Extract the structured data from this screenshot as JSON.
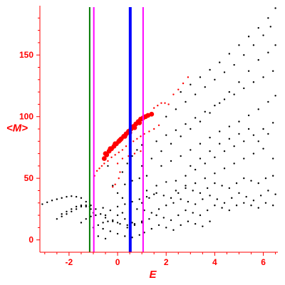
{
  "chart_data": {
    "type": "scatter",
    "xlabel": "E",
    "ylabel": "<M>",
    "xlim": [
      -3.2,
      6.6
    ],
    "ylim": [
      -10,
      190
    ],
    "x_ticks": [
      -2,
      0,
      2,
      4,
      6
    ],
    "x_tick_labels": [
      "-2",
      "0",
      "2",
      "4",
      "6"
    ],
    "y_ticks": [
      0,
      50,
      100,
      150
    ],
    "y_tick_labels": [
      "0",
      "50",
      "100",
      "150"
    ],
    "axis_color": "#ff0000",
    "tick_label_color": "#ff0000",
    "grid": false,
    "vertical_lines": [
      {
        "x": -1.15,
        "color": "#007700"
      },
      {
        "x": -0.98,
        "color": "#ff00ff"
      },
      {
        "x": 0.52,
        "color": "#0000ff",
        "emphasis": "thick"
      },
      {
        "x": 1.05,
        "color": "#ff00ff"
      }
    ],
    "series": [
      {
        "color": "#000000",
        "marker": "small-dot",
        "points": [
          [
            -3.1,
            29
          ],
          [
            -2.9,
            30.5
          ],
          [
            -2.7,
            32
          ],
          [
            -2.5,
            33
          ],
          [
            -2.3,
            34
          ],
          [
            -2.1,
            35
          ],
          [
            -1.9,
            35.5
          ],
          [
            -1.7,
            35
          ],
          [
            -1.5,
            34
          ],
          [
            -1.3,
            31
          ],
          [
            -1.15,
            27
          ],
          [
            -1.0,
            22
          ],
          [
            -2.5,
            17
          ],
          [
            -2.3,
            19
          ],
          [
            -2.1,
            21
          ],
          [
            -1.9,
            23
          ],
          [
            -1.7,
            25
          ],
          [
            -1.5,
            27
          ],
          [
            -1.3,
            28
          ],
          [
            -1.1,
            28
          ],
          [
            -2.3,
            21
          ],
          [
            -2.1,
            23
          ],
          [
            -1.9,
            25
          ],
          [
            -1.7,
            27
          ],
          [
            -1.5,
            28
          ],
          [
            -1.3,
            27
          ],
          [
            -1.1,
            25
          ],
          [
            -1.5,
            14
          ],
          [
            -1.3,
            17
          ],
          [
            -1.1,
            19
          ],
          [
            -0.9,
            20
          ],
          [
            -0.7,
            21
          ],
          [
            -0.5,
            20
          ],
          [
            -1.0,
            10
          ],
          [
            -0.8,
            12
          ],
          [
            -0.6,
            14
          ],
          [
            -0.4,
            15
          ],
          [
            -0.2,
            15
          ],
          [
            0.0,
            14
          ],
          [
            -0.9,
            25
          ],
          [
            -0.6,
            26
          ],
          [
            -0.3,
            24
          ],
          [
            0.0,
            20
          ],
          [
            0.3,
            17
          ],
          [
            0.6,
            14
          ],
          [
            -0.5,
            18
          ],
          [
            -0.2,
            16
          ],
          [
            0.1,
            13
          ],
          [
            0.4,
            12
          ],
          [
            0.7,
            13
          ],
          [
            1.0,
            15
          ],
          [
            0.0,
            27
          ],
          [
            0.3,
            29
          ],
          [
            0.6,
            31
          ],
          [
            0.9,
            33
          ],
          [
            1.2,
            35
          ],
          [
            1.5,
            37
          ],
          [
            1.0,
            60
          ],
          [
            1.4,
            66
          ],
          [
            1.8,
            72
          ],
          [
            2.2,
            78
          ],
          [
            2.6,
            84
          ],
          [
            3.0,
            90
          ],
          [
            3.4,
            96
          ],
          [
            3.8,
            103
          ],
          [
            4.2,
            111
          ],
          [
            4.6,
            120
          ],
          [
            5.0,
            128
          ],
          [
            5.4,
            137
          ],
          [
            5.8,
            146
          ],
          [
            6.2,
            152
          ],
          [
            6.5,
            158
          ],
          [
            2.0,
            100
          ],
          [
            2.4,
            106
          ],
          [
            2.8,
            112
          ],
          [
            3.2,
            118
          ],
          [
            3.6,
            124
          ],
          [
            4.0,
            130
          ],
          [
            4.4,
            136
          ],
          [
            4.8,
            142
          ],
          [
            5.2,
            150
          ],
          [
            5.6,
            158
          ],
          [
            6.0,
            166
          ],
          [
            6.3,
            173
          ],
          [
            2.6,
            120
          ],
          [
            3.0,
            126
          ],
          [
            3.4,
            132
          ],
          [
            3.8,
            138
          ],
          [
            4.2,
            144
          ],
          [
            4.6,
            151
          ],
          [
            5.0,
            158
          ],
          [
            5.4,
            165
          ],
          [
            5.8,
            172
          ],
          [
            6.2,
            180
          ],
          [
            6.5,
            188
          ],
          [
            1.6,
            80
          ],
          [
            2.0,
            85
          ],
          [
            2.4,
            89
          ],
          [
            2.8,
            94
          ],
          [
            3.2,
            99
          ],
          [
            3.6,
            104
          ],
          [
            4.0,
            109
          ],
          [
            4.4,
            114
          ],
          [
            4.8,
            118
          ],
          [
            5.2,
            123
          ],
          [
            5.6,
            128
          ],
          [
            6.0,
            132
          ],
          [
            6.4,
            137
          ],
          [
            1.8,
            60
          ],
          [
            2.2,
            64
          ],
          [
            2.6,
            68
          ],
          [
            3.0,
            73
          ],
          [
            3.4,
            78
          ],
          [
            3.8,
            83
          ],
          [
            4.2,
            88
          ],
          [
            4.6,
            92
          ],
          [
            5.0,
            96
          ],
          [
            5.4,
            101
          ],
          [
            5.8,
            106
          ],
          [
            6.2,
            112
          ],
          [
            6.5,
            117
          ],
          [
            2.4,
            48
          ],
          [
            2.8,
            52
          ],
          [
            3.2,
            57
          ],
          [
            3.6,
            62
          ],
          [
            4.0,
            67
          ],
          [
            4.4,
            72
          ],
          [
            4.8,
            76
          ],
          [
            5.2,
            80
          ],
          [
            5.6,
            85
          ],
          [
            6.0,
            90
          ],
          [
            6.4,
            95
          ],
          [
            3.0,
            60
          ],
          [
            3.4,
            66
          ],
          [
            3.8,
            72
          ],
          [
            4.2,
            78
          ],
          [
            4.6,
            82
          ],
          [
            5.0,
            86
          ],
          [
            5.4,
            90
          ],
          [
            5.8,
            80
          ],
          [
            6.2,
            86
          ],
          [
            1.2,
            40
          ],
          [
            1.6,
            44
          ],
          [
            2.0,
            47
          ],
          [
            2.4,
            40
          ],
          [
            2.8,
            44
          ],
          [
            3.2,
            46
          ],
          [
            3.6,
            50
          ],
          [
            4.0,
            54
          ],
          [
            4.4,
            58
          ],
          [
            4.8,
            62
          ],
          [
            5.2,
            66
          ],
          [
            5.6,
            70
          ],
          [
            6.0,
            74
          ],
          [
            6.4,
            66
          ],
          [
            0.2,
            55
          ],
          [
            0.4,
            62
          ],
          [
            0.6,
            68
          ],
          [
            0.8,
            73
          ],
          [
            1.0,
            77
          ],
          [
            0.3,
            45
          ],
          [
            0.6,
            48
          ],
          [
            0.9,
            50
          ],
          [
            1.2,
            52
          ],
          [
            -0.4,
            60
          ],
          [
            -0.2,
            44
          ],
          [
            0.0,
            38
          ],
          [
            0.2,
            34
          ],
          [
            0.2,
            22
          ],
          [
            0.5,
            23
          ],
          [
            0.8,
            25
          ],
          [
            1.1,
            24
          ],
          [
            1.4,
            22
          ],
          [
            1.7,
            25
          ],
          [
            2.0,
            28
          ],
          [
            2.3,
            30
          ],
          [
            2.6,
            33
          ],
          [
            2.9,
            31
          ],
          [
            3.2,
            29
          ],
          [
            3.5,
            33
          ],
          [
            3.8,
            36
          ],
          [
            4.1,
            33
          ],
          [
            4.4,
            30
          ],
          [
            4.7,
            34
          ],
          [
            5.0,
            38
          ],
          [
            5.3,
            35
          ],
          [
            5.6,
            32
          ],
          [
            5.9,
            36
          ],
          [
            6.2,
            40
          ],
          [
            6.5,
            37
          ],
          [
            0.4,
            10
          ],
          [
            0.7,
            12
          ],
          [
            1.0,
            14
          ],
          [
            1.3,
            17
          ],
          [
            1.6,
            20
          ],
          [
            1.9,
            18
          ],
          [
            2.2,
            16
          ],
          [
            2.5,
            20
          ],
          [
            2.8,
            24
          ],
          [
            3.1,
            22
          ],
          [
            3.4,
            20
          ],
          [
            3.7,
            24
          ],
          [
            4.0,
            28
          ],
          [
            4.3,
            26
          ],
          [
            4.6,
            24
          ],
          [
            4.9,
            28
          ],
          [
            5.2,
            30
          ],
          [
            5.5,
            28
          ],
          [
            5.8,
            26
          ],
          [
            6.1,
            30
          ],
          [
            6.4,
            28
          ],
          [
            1.0,
            30
          ],
          [
            1.3,
            34
          ],
          [
            1.6,
            38
          ],
          [
            1.9,
            36
          ],
          [
            2.2,
            34
          ],
          [
            2.5,
            38
          ],
          [
            2.8,
            42
          ],
          [
            3.1,
            40
          ],
          [
            3.4,
            38
          ],
          [
            3.7,
            42
          ],
          [
            4.0,
            46
          ],
          [
            4.3,
            44
          ],
          [
            4.6,
            42
          ],
          [
            4.9,
            46
          ],
          [
            5.2,
            50
          ],
          [
            5.5,
            48
          ],
          [
            5.8,
            46
          ],
          [
            6.1,
            50
          ],
          [
            6.4,
            52
          ],
          [
            1.1,
            6
          ],
          [
            1.4,
            9
          ],
          [
            1.7,
            12
          ],
          [
            2.0,
            10
          ],
          [
            2.3,
            8
          ],
          [
            2.6,
            12
          ],
          [
            2.9,
            15
          ],
          [
            3.2,
            13
          ],
          [
            3.5,
            11
          ],
          [
            3.8,
            15
          ],
          [
            0.0,
            5
          ],
          [
            0.3,
            3
          ],
          [
            0.6,
            2
          ],
          [
            -0.3,
            7
          ],
          [
            -0.6,
            9
          ],
          [
            0.9,
            4
          ],
          [
            -0.8,
            3
          ],
          [
            -0.5,
            1
          ]
        ]
      },
      {
        "color": "#ff0000",
        "marker": "large-dot",
        "points": [
          [
            -0.55,
            66
          ],
          [
            -0.45,
            69
          ],
          [
            -0.35,
            72
          ],
          [
            -0.25,
            74
          ],
          [
            -0.15,
            76
          ],
          [
            -0.05,
            78
          ],
          [
            0.05,
            80
          ],
          [
            0.15,
            82
          ],
          [
            0.25,
            84
          ],
          [
            0.35,
            86
          ],
          [
            0.45,
            88
          ],
          [
            0.55,
            90
          ],
          [
            0.65,
            92
          ],
          [
            0.75,
            94
          ],
          [
            0.85,
            96
          ],
          [
            0.95,
            98
          ],
          [
            1.05,
            99
          ],
          [
            1.15,
            100
          ],
          [
            1.25,
            101
          ],
          [
            1.4,
            102
          ],
          [
            -0.5,
            70
          ],
          [
            -0.3,
            74
          ],
          [
            -0.1,
            78
          ],
          [
            0.1,
            81
          ],
          [
            0.3,
            84
          ],
          [
            0.5,
            87
          ],
          [
            0.7,
            91
          ],
          [
            0.9,
            95
          ]
        ]
      },
      {
        "color": "#ff0000",
        "marker": "small-dot",
        "points": [
          [
            -0.95,
            52
          ],
          [
            -0.85,
            56
          ],
          [
            -0.75,
            58
          ],
          [
            -0.65,
            60
          ],
          [
            -0.55,
            62
          ],
          [
            -0.4,
            64
          ],
          [
            -0.25,
            67
          ],
          [
            -0.1,
            69
          ],
          [
            0.05,
            71
          ],
          [
            0.2,
            73
          ],
          [
            0.35,
            76
          ],
          [
            0.5,
            78
          ],
          [
            0.65,
            80
          ],
          [
            0.8,
            82
          ],
          [
            0.95,
            84
          ],
          [
            1.1,
            86
          ],
          [
            1.3,
            88
          ],
          [
            1.5,
            90
          ],
          [
            1.7,
            93
          ],
          [
            1.5,
            107
          ],
          [
            1.65,
            109
          ],
          [
            1.8,
            111
          ],
          [
            1.95,
            111
          ],
          [
            2.1,
            110
          ],
          [
            2.3,
            118
          ],
          [
            2.5,
            122
          ],
          [
            2.7,
            127
          ],
          [
            2.9,
            132
          ],
          [
            0.2,
            66
          ],
          [
            0.45,
            68
          ],
          [
            0.7,
            70
          ],
          [
            0.95,
            72
          ],
          [
            0.0,
            62
          ],
          [
            0.1,
            55
          ],
          [
            0.05,
            50
          ],
          [
            -0.1,
            45
          ],
          [
            -0.2,
            43
          ]
        ]
      }
    ]
  }
}
